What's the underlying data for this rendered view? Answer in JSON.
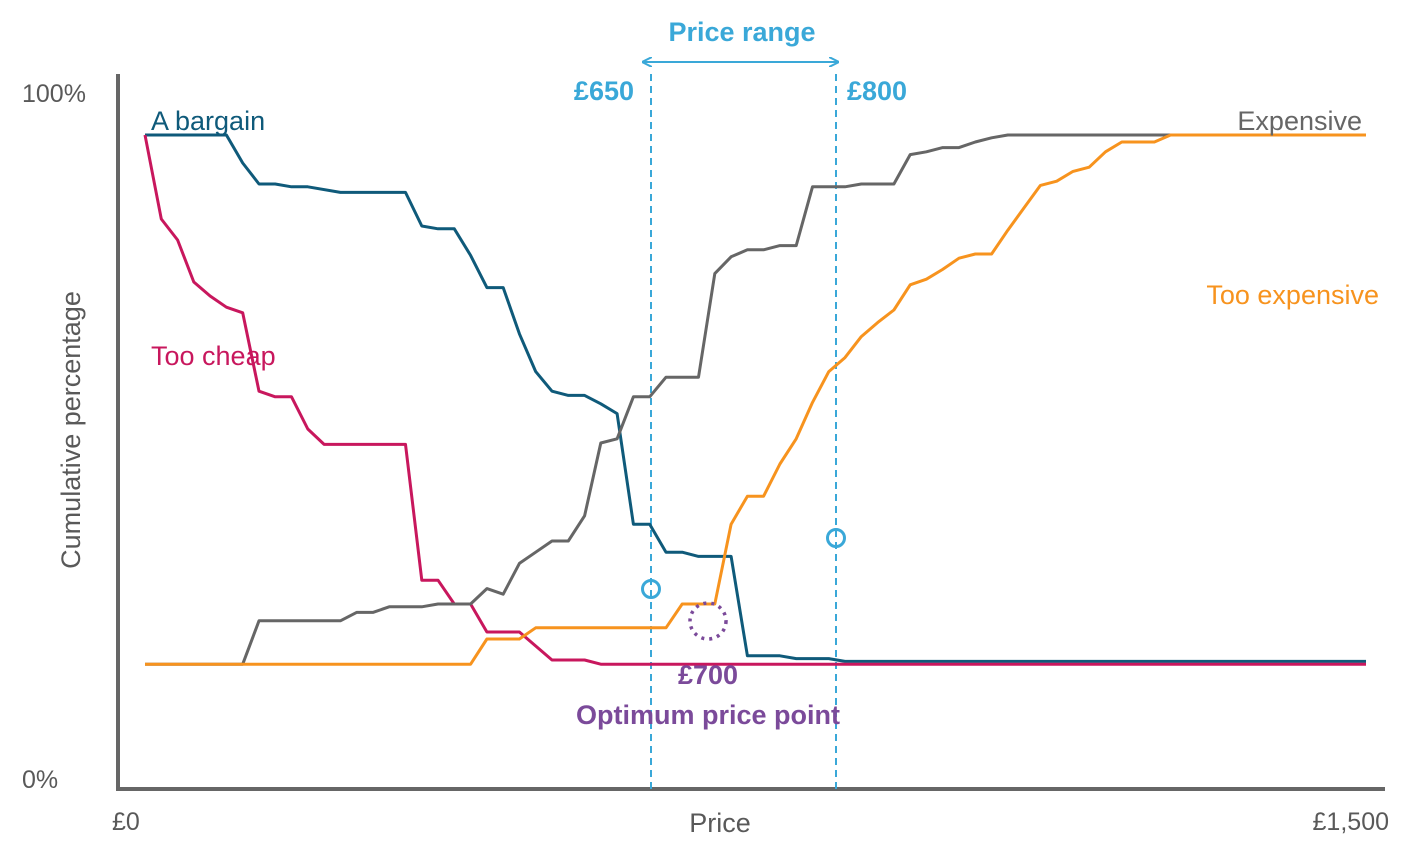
{
  "chart_data": {
    "type": "line",
    "title": "",
    "xlabel": "Price",
    "ylabel": "Cumulative percentage",
    "x_tick_labels": [
      "£0",
      "£1,500"
    ],
    "y_tick_labels": [
      "0%",
      "100%"
    ],
    "xlim": [
      0,
      1500
    ],
    "ylim": [
      0,
      100
    ],
    "grid": false,
    "legend": "none (series labelled directly on lines)",
    "colors": {
      "axis": "#666666",
      "price_range": "#3aa8d8",
      "optimum": "#7b4a9a"
    },
    "series": [
      {
        "name": "A bargain",
        "color": "#0f5a7a",
        "x": [
          0,
          100,
          120,
          140,
          160,
          180,
          200,
          240,
          260,
          280,
          300,
          320,
          340,
          360,
          380,
          400,
          420,
          440,
          460,
          480,
          500,
          520,
          540,
          560,
          580,
          600,
          620,
          640,
          660,
          680,
          700,
          720,
          740,
          760,
          780,
          800,
          820,
          840,
          860,
          880,
          900,
          920,
          940,
          960,
          980,
          1000,
          1020,
          1040,
          1060,
          1080,
          1100,
          1120,
          1140,
          1160,
          1180,
          1200,
          1220,
          1240,
          1260,
          1280,
          1300,
          1320,
          1340,
          1360,
          1380,
          1400,
          1420,
          1440,
          1460,
          1480,
          1500
        ],
        "y": [
          92,
          92,
          88,
          85,
          85,
          84.6,
          84.6,
          83.8,
          83.8,
          83.8,
          83.8,
          83.8,
          79,
          78.6,
          78.6,
          74.8,
          70.2,
          70.2,
          63.6,
          58.2,
          55.4,
          54.8,
          54.8,
          53.6,
          52.2,
          36.4,
          36.4,
          32.4,
          32.4,
          31.8,
          31.8,
          31.8,
          17.6,
          17.6,
          17.6,
          17.2,
          17.2,
          17.2,
          16.8,
          16.8,
          16.8,
          16.8,
          16.8,
          16.8,
          16.8,
          16.8,
          16.8,
          16.8,
          16.8,
          16.8,
          16.8,
          16.8,
          16.8,
          16.8,
          16.8,
          16.8,
          16.8,
          16.8,
          16.8,
          16.8,
          16.8,
          16.8,
          16.8,
          16.8,
          16.8,
          16.8,
          16.8,
          16.8,
          16.8,
          16.8,
          16.8
        ]
      },
      {
        "name": "Too cheap",
        "color": "#c8175d",
        "x": [
          0,
          20,
          40,
          60,
          80,
          100,
          120,
          140,
          160,
          180,
          200,
          220,
          240,
          260,
          280,
          300,
          320,
          340,
          360,
          380,
          400,
          420,
          440,
          460,
          480,
          500,
          520,
          540,
          560,
          580,
          600,
          620,
          640,
          660,
          680,
          700,
          720,
          740,
          760,
          780,
          800,
          820,
          840,
          860,
          880,
          900,
          920,
          940,
          960,
          980,
          1000,
          1020,
          1040,
          1060,
          1080,
          1100,
          1120,
          1140,
          1160,
          1180,
          1200,
          1220,
          1240,
          1260,
          1280,
          1300,
          1320,
          1340,
          1360,
          1380,
          1400,
          1420,
          1440,
          1460,
          1480,
          1500
        ],
        "y": [
          92,
          80,
          77,
          71,
          69,
          67.4,
          66.6,
          55.4,
          54.6,
          54.6,
          50,
          47.8,
          47.8,
          47.8,
          47.8,
          47.8,
          47.8,
          28.4,
          28.4,
          25,
          25,
          21,
          21,
          21,
          19,
          17,
          17,
          17,
          16.4,
          16.4,
          16.4,
          16.4,
          16.4,
          16.4,
          16.4,
          16.4,
          16.4,
          16.4,
          16.4,
          16.4,
          16.4,
          16.4,
          16.4,
          16.4,
          16.4,
          16.4,
          16.4,
          16.4,
          16.4,
          16.4,
          16.4,
          16.4,
          16.4,
          16.4,
          16.4,
          16.4,
          16.4,
          16.4,
          16.4,
          16.4,
          16.4,
          16.4,
          16.4,
          16.4,
          16.4,
          16.4,
          16.4,
          16.4,
          16.4,
          16.4,
          16.4,
          16.4,
          16.4,
          16.4,
          16.4,
          16.4
        ]
      },
      {
        "name": "Expensive",
        "color": "#666666",
        "x": [
          0,
          120,
          140,
          160,
          180,
          200,
          220,
          240,
          260,
          280,
          300,
          320,
          340,
          360,
          380,
          400,
          420,
          440,
          460,
          480,
          500,
          520,
          540,
          560,
          580,
          600,
          620,
          640,
          660,
          680,
          700,
          720,
          740,
          760,
          780,
          800,
          820,
          840,
          860,
          880,
          900,
          920,
          940,
          960,
          980,
          1000,
          1020,
          1040,
          1060,
          1080,
          1100,
          1120,
          1140,
          1160,
          1180,
          1200,
          1220,
          1240,
          1260,
          1280,
          1300,
          1320,
          1340,
          1360,
          1380,
          1400,
          1420,
          1440,
          1460,
          1480,
          1500
        ],
        "y": [
          16.4,
          16.4,
          22.6,
          22.6,
          22.6,
          22.6,
          22.6,
          22.6,
          23.8,
          23.8,
          24.6,
          24.6,
          24.6,
          25,
          25,
          25,
          27.2,
          26.4,
          30.8,
          32.4,
          34,
          34,
          37.6,
          48,
          48.6,
          54.6,
          54.6,
          57.4,
          57.4,
          57.4,
          72.2,
          74.6,
          75.6,
          75.6,
          76.2,
          76.2,
          84.6,
          84.6,
          84.6,
          85,
          85,
          85,
          89.2,
          89.6,
          90.2,
          90.2,
          91,
          91.6,
          92,
          92,
          92,
          92,
          92,
          92,
          92,
          92,
          92,
          92,
          92,
          92,
          92,
          92,
          92,
          92,
          92,
          92,
          92,
          92,
          92,
          92,
          92
        ]
      },
      {
        "name": "Too expensive",
        "color": "#f7931e",
        "x": [
          0,
          100,
          120,
          140,
          160,
          180,
          200,
          220,
          240,
          260,
          280,
          300,
          320,
          340,
          360,
          380,
          400,
          420,
          440,
          460,
          480,
          500,
          520,
          540,
          560,
          580,
          600,
          620,
          640,
          660,
          680,
          700,
          720,
          740,
          760,
          780,
          800,
          820,
          840,
          860,
          880,
          900,
          920,
          940,
          960,
          980,
          1000,
          1020,
          1040,
          1060,
          1080,
          1100,
          1120,
          1140,
          1160,
          1180,
          1200,
          1220,
          1240,
          1260,
          1280,
          1300,
          1320,
          1340,
          1360,
          1380,
          1400,
          1420,
          1440,
          1460,
          1480,
          1500
        ],
        "y": [
          16.4,
          16.4,
          16.4,
          16.4,
          16.4,
          16.4,
          16.4,
          16.4,
          16.4,
          16.4,
          16.4,
          16.4,
          16.4,
          16.4,
          16.4,
          16.4,
          16.4,
          20,
          20,
          20,
          21.6,
          21.6,
          21.6,
          21.6,
          21.6,
          21.6,
          21.6,
          21.6,
          21.6,
          25,
          25,
          25,
          36.4,
          40.4,
          40.4,
          45,
          48.6,
          53.8,
          58.2,
          60.2,
          63.2,
          65.2,
          67,
          70.6,
          71.4,
          72.8,
          74.4,
          75,
          75,
          78.4,
          81.6,
          84.8,
          85.4,
          86.8,
          87.4,
          89.6,
          91,
          91,
          91,
          92,
          92,
          92,
          92,
          92,
          92,
          92,
          92,
          92,
          92,
          92,
          92,
          92
        ]
      }
    ],
    "annotations": {
      "price_range_label": "Price range",
      "price_low": "£650",
      "price_high": "£800",
      "optimum_value": "£700",
      "optimum_label": "Optimum price point"
    }
  }
}
